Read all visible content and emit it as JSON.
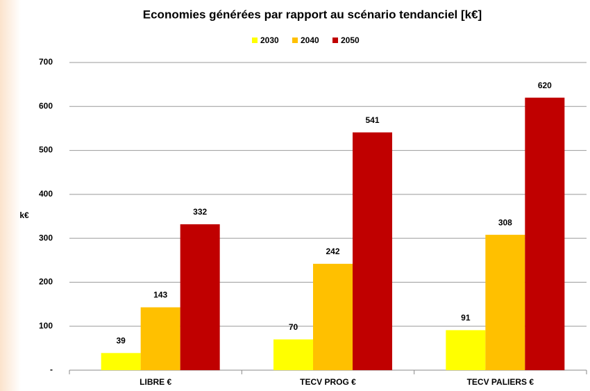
{
  "chart_data": {
    "type": "bar",
    "title": "Economies générées par rapport au scénario tendanciel [k€]",
    "ylabel": "k€",
    "categories": [
      "LIBRE €",
      "TECV PROG €",
      "TECV PALIERS €"
    ],
    "series": [
      {
        "name": "2030",
        "color": "#ffff00",
        "values": [
          39,
          70,
          91
        ]
      },
      {
        "name": "2040",
        "color": "#ffc000",
        "values": [
          143,
          242,
          308
        ]
      },
      {
        "name": "2050",
        "color": "#c00000",
        "values": [
          332,
          541,
          620
        ]
      }
    ],
    "ylim": [
      0,
      700
    ],
    "yticks": [
      {
        "value": 0,
        "label": "-"
      },
      100,
      200,
      300,
      400,
      500,
      600,
      700
    ],
    "grid": true,
    "legend": "top"
  }
}
